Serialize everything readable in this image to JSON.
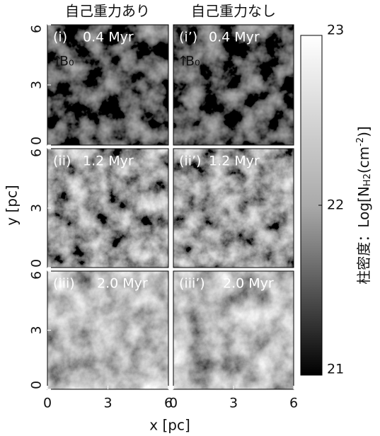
{
  "columns": [
    "自己重力あり",
    "自己重力なし"
  ],
  "panels": [
    {
      "label": "(i)",
      "time": "0.4 Myr"
    },
    {
      "label": "(i’)",
      "time": "0.4 Myr"
    },
    {
      "label": "(ii)",
      "time": "1.2 Myr"
    },
    {
      "label": "(ii’)",
      "time": "1.2 Myr"
    },
    {
      "label": "(iii)",
      "time": "2.0 Myr"
    },
    {
      "label": "(iii’)",
      "time": "2.0 Myr"
    }
  ],
  "field_label": "B₀",
  "x_axis": {
    "label": "x [pc]",
    "lim": [
      0,
      6
    ],
    "ticks": [
      0,
      3,
      6
    ]
  },
  "y_axis": {
    "label": "y [pc]",
    "lim": [
      0,
      6
    ],
    "ticks": [
      0,
      3,
      6
    ]
  },
  "colorbar": {
    "label_parts": [
      "柱密度：Log[N",
      "H2",
      "(cm",
      "-2",
      ")]"
    ],
    "lim": [
      21,
      23
    ],
    "ticks": [
      21,
      22,
      23
    ]
  }
}
